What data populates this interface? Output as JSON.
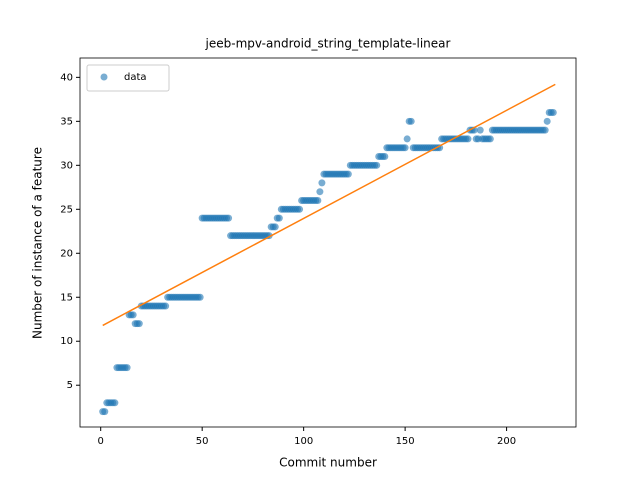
{
  "chart_data": {
    "type": "scatter",
    "title": "jeeb-mpv-android_string_template-linear",
    "xlabel": "Commit number",
    "ylabel": "Number of instance of a feature",
    "xlim": [
      -10.2,
      234.2
    ],
    "ylim": [
      0.25,
      42.2
    ],
    "xticks": [
      0,
      50,
      100,
      150,
      200
    ],
    "yticks": [
      5,
      10,
      15,
      20,
      25,
      30,
      35,
      40
    ],
    "legend": "upper left",
    "series": [
      {
        "name": "data",
        "kind": "scatter",
        "color": "#1f77b4",
        "alpha": 0.6,
        "x": [
          1,
          2,
          3,
          4,
          5,
          6,
          7,
          8,
          9,
          10,
          11,
          12,
          13,
          14,
          15,
          16,
          17,
          18,
          19,
          20,
          21,
          22,
          23,
          24,
          25,
          26,
          27,
          28,
          29,
          30,
          31,
          32,
          33,
          34,
          35,
          36,
          37,
          38,
          39,
          40,
          41,
          42,
          43,
          44,
          45,
          46,
          47,
          48,
          49,
          50,
          51,
          52,
          53,
          54,
          55,
          56,
          57,
          58,
          59,
          60,
          61,
          62,
          63,
          64,
          65,
          66,
          67,
          68,
          69,
          70,
          71,
          72,
          73,
          74,
          75,
          76,
          77,
          78,
          79,
          80,
          81,
          82,
          83,
          84,
          85,
          86,
          87,
          88,
          89,
          90,
          91,
          92,
          93,
          94,
          95,
          96,
          97,
          98,
          99,
          100,
          101,
          102,
          103,
          104,
          105,
          106,
          107,
          108,
          109,
          110,
          111,
          112,
          113,
          114,
          115,
          116,
          117,
          118,
          119,
          120,
          121,
          122,
          123,
          124,
          125,
          126,
          127,
          128,
          129,
          130,
          131,
          132,
          133,
          134,
          135,
          136,
          137,
          138,
          139,
          140,
          141,
          142,
          143,
          144,
          145,
          146,
          147,
          148,
          149,
          150,
          151,
          152,
          153,
          154,
          155,
          156,
          157,
          158,
          159,
          160,
          161,
          162,
          163,
          164,
          165,
          166,
          167,
          168,
          169,
          170,
          171,
          172,
          173,
          174,
          175,
          176,
          177,
          178,
          179,
          180,
          181,
          182,
          183,
          184,
          185,
          186,
          187,
          188,
          189,
          190,
          191,
          192,
          193,
          194,
          195,
          196,
          197,
          198,
          199,
          200,
          201,
          202,
          203,
          204,
          205,
          206,
          207,
          208,
          209,
          210,
          211,
          212,
          213,
          214,
          215,
          216,
          217,
          218,
          219,
          220,
          221,
          222,
          223
        ],
        "values": [
          2,
          2,
          3,
          3,
          3,
          3,
          3,
          7,
          7,
          7,
          7,
          7,
          7,
          13,
          13,
          13,
          12,
          12,
          12,
          14,
          14,
          14,
          14,
          14,
          14,
          14,
          14,
          14,
          14,
          14,
          14,
          14,
          15,
          15,
          15,
          15,
          15,
          15,
          15,
          15,
          15,
          15,
          15,
          15,
          15,
          15,
          15,
          15,
          15,
          24,
          24,
          24,
          24,
          24,
          24,
          24,
          24,
          24,
          24,
          24,
          24,
          24,
          24,
          22,
          22,
          22,
          22,
          22,
          22,
          22,
          22,
          22,
          22,
          22,
          22,
          22,
          22,
          22,
          22,
          22,
          22,
          22,
          22,
          23,
          23,
          23,
          24,
          24,
          25,
          25,
          25,
          25,
          25,
          25,
          25,
          25,
          25,
          25,
          26,
          26,
          26,
          26,
          26,
          26,
          26,
          26,
          26,
          27,
          28,
          29,
          29,
          29,
          29,
          29,
          29,
          29,
          29,
          29,
          29,
          29,
          29,
          29,
          30,
          30,
          30,
          30,
          30,
          30,
          30,
          30,
          30,
          30,
          30,
          30,
          30,
          30,
          31,
          31,
          31,
          31,
          32,
          32,
          32,
          32,
          32,
          32,
          32,
          32,
          32,
          32,
          33,
          35,
          35,
          32,
          32,
          32,
          32,
          32,
          32,
          32,
          32,
          32,
          32,
          32,
          32,
          32,
          32,
          33,
          33,
          33,
          33,
          33,
          33,
          33,
          33,
          33,
          33,
          33,
          33,
          33,
          33,
          34,
          34,
          34,
          33,
          33,
          34,
          33,
          33,
          33,
          33,
          33,
          34,
          34,
          34,
          34,
          34,
          34,
          34,
          34,
          34,
          34,
          34,
          34,
          34,
          34,
          34,
          34,
          34,
          34,
          34,
          34,
          34,
          34,
          34,
          34,
          34,
          34,
          34,
          35,
          36,
          36,
          36
        ]
      },
      {
        "kind": "line",
        "color": "#ff7f0e",
        "x": [
          1,
          224
        ],
        "values": [
          11.8,
          39.2
        ]
      }
    ]
  }
}
